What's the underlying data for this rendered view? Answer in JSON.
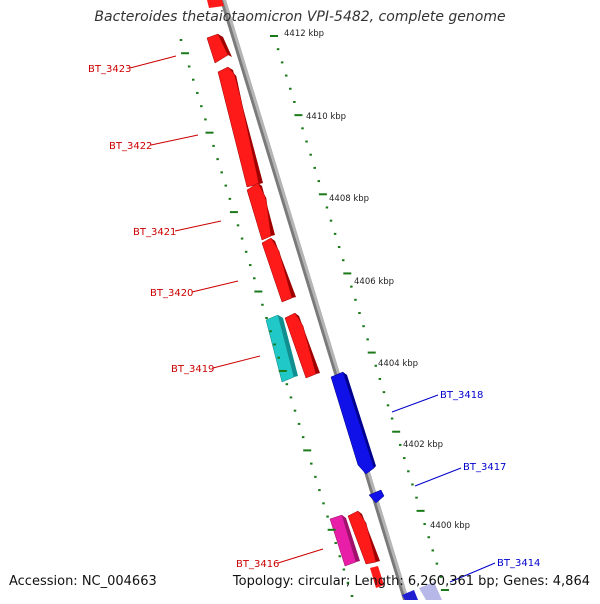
{
  "title": "Bacteroides thetaiotaomicron VPI-5482, complete genome",
  "footer": {
    "accession": "Accession: NC_004663",
    "summary": "Topology: circular; Length: 6,260,361 bp; Genes: 4,864"
  },
  "colors": {
    "forward_gene": "#ff0000",
    "reverse_gene": "#0000ff",
    "gc_tick": "#1a7a1a",
    "backbone": "#808080",
    "cyan_gene": "#20c8c8",
    "magenta_gene": "#e020a0"
  },
  "scale_labels": [
    "4412 kbp",
    "4410 kbp",
    "4408 kbp",
    "4406 kbp",
    "4404 kbp",
    "4402 kbp",
    "4400 kbp"
  ],
  "gene_labels": [
    {
      "name": "BT_3423",
      "color": "#cc0000"
    },
    {
      "name": "BT_3422",
      "color": "#cc0000"
    },
    {
      "name": "BT_3421",
      "color": "#cc0000"
    },
    {
      "name": "BT_3420",
      "color": "#cc0000"
    },
    {
      "name": "BT_3419",
      "color": "#cc0000"
    },
    {
      "name": "BT_3416",
      "color": "#cc0000"
    },
    {
      "name": "BT_3418",
      "color": "#0000cc"
    },
    {
      "name": "BT_3417",
      "color": "#0000cc"
    },
    {
      "name": "BT_3414",
      "color": "#0000cc"
    }
  ]
}
